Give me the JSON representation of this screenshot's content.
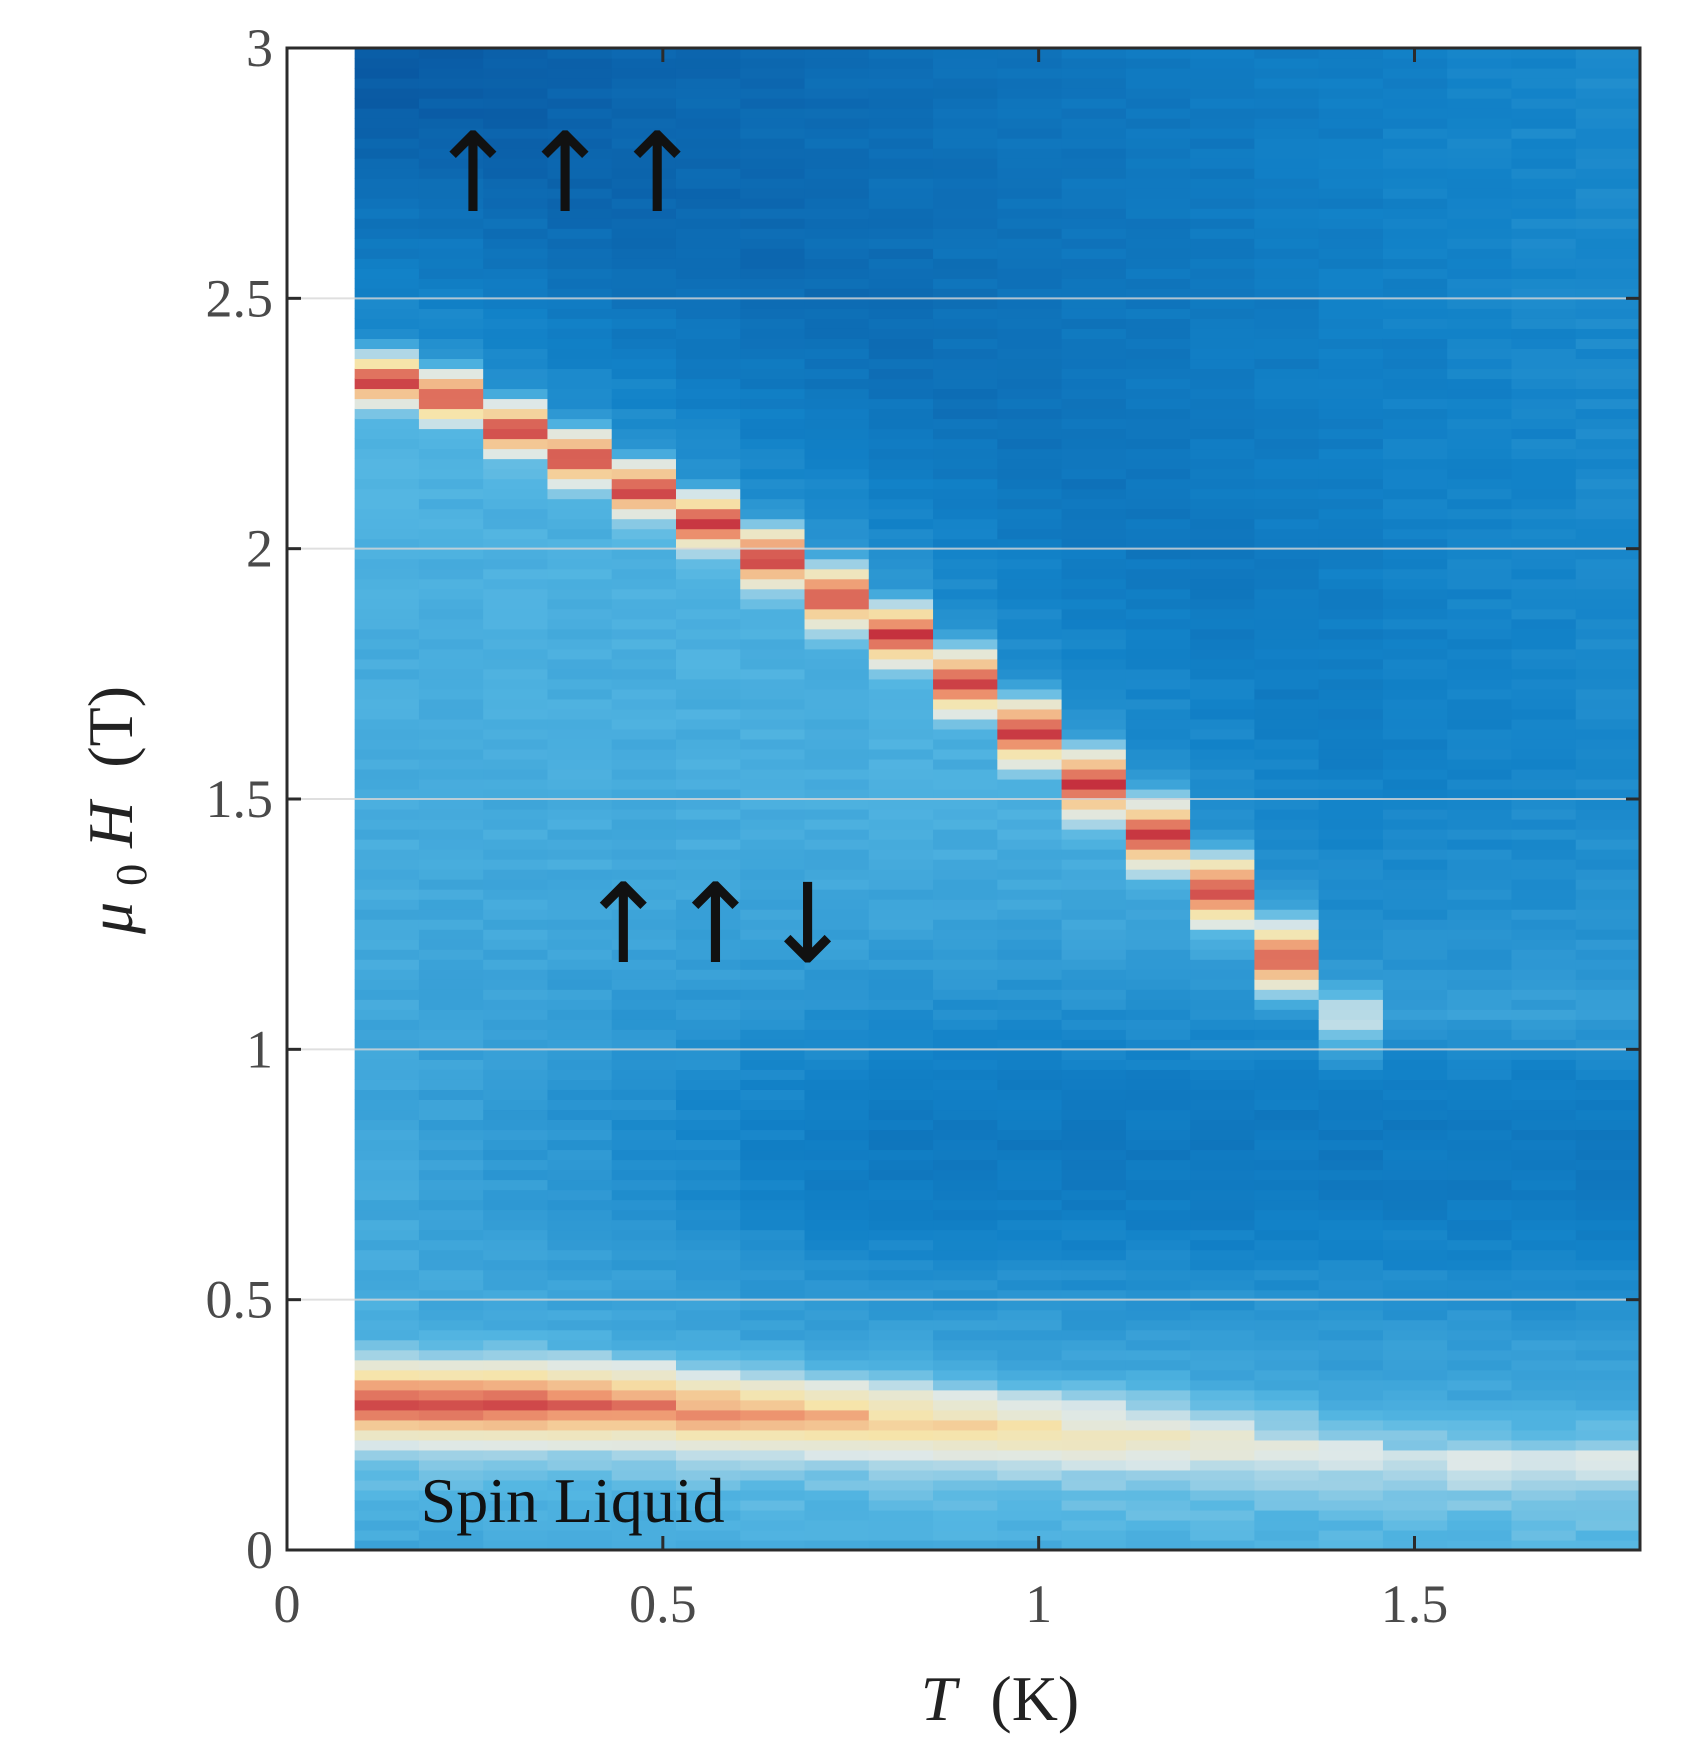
{
  "chart_data": {
    "type": "heatmap",
    "title": "",
    "xlabel_symbol": "T",
    "xlabel_unit": "(K)",
    "ylabel_symbol": "μ",
    "ylabel_subscript": "0",
    "ylabel_symbol2": "H",
    "ylabel_unit": "(T)",
    "xlim": [
      0,
      1.8
    ],
    "ylim": [
      0,
      3
    ],
    "xticks": [
      0,
      0.5,
      1,
      1.5
    ],
    "xtick_labels": [
      "0",
      "0.5",
      "1",
      "1.5"
    ],
    "yticks": [
      0,
      0.5,
      1,
      1.5,
      2,
      2.5,
      3
    ],
    "ytick_labels": [
      "0",
      "0.5",
      "1",
      "1.5",
      "2",
      "2.5",
      "3"
    ],
    "grid": "horizontal, at y ticks",
    "colormap": "diverging blue-white-red",
    "colors": {
      "low": "#0a5fa8",
      "mid_low": "#4fb3de",
      "neutral": "#e8e4d0",
      "mid_high": "#f0a77e",
      "high": "#c3273b"
    },
    "data_x_range": [
      0.09,
      1.8
    ],
    "upper_transition_line": {
      "name": "",
      "x": [
        0.09,
        0.14,
        0.18,
        0.23,
        0.28,
        0.37,
        0.44,
        0.52,
        0.62,
        0.72,
        0.82,
        0.92,
        1.02,
        1.12,
        1.22,
        1.32,
        1.42
      ],
      "y": [
        2.35,
        2.34,
        2.33,
        2.3,
        2.26,
        2.2,
        2.15,
        2.09,
        2.01,
        1.92,
        1.83,
        1.72,
        1.6,
        1.48,
        1.36,
        1.2,
        1.05
      ]
    },
    "lower_transition_line": {
      "name": "",
      "x": [
        0.09,
        0.2,
        0.3,
        0.45,
        0.6,
        0.8,
        1.0,
        1.2,
        1.4,
        1.6,
        1.8
      ],
      "y": [
        0.3,
        0.3,
        0.3,
        0.3,
        0.28,
        0.27,
        0.25,
        0.24,
        0.22,
        0.2,
        0.2
      ]
    },
    "annotations": [
      {
        "text": "↑↑↑",
        "x": 0.37,
        "y": 2.75
      },
      {
        "text": "↑↑↓",
        "x": 0.57,
        "y": 1.25
      },
      {
        "text": "Spin Liquid",
        "x": 0.38,
        "y": 0.1
      }
    ]
  }
}
